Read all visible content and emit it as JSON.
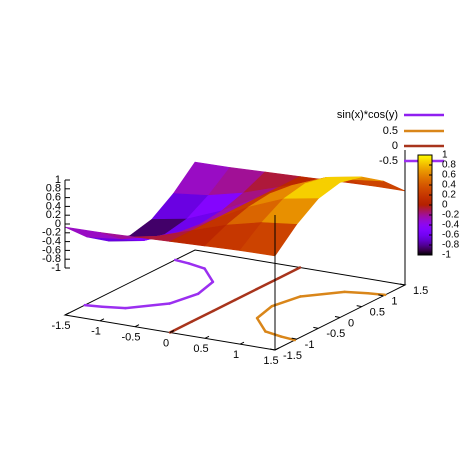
{
  "chart_data": {
    "type": "surface",
    "x": [
      -1.5,
      -1,
      -0.5,
      0,
      0.5,
      1,
      1.5
    ],
    "y": [
      -1.5,
      -1,
      -0.5,
      0,
      0.5,
      1,
      1.5
    ],
    "surface": {
      "name": "sin(x)*cos(y)",
      "color": "#8f1ff0",
      "z": [
        [
          -0.07,
          -0.06,
          -0.03,
          0,
          0.03,
          0.06,
          0.07
        ],
        [
          -0.54,
          -0.45,
          -0.26,
          0,
          0.26,
          0.45,
          0.54
        ],
        [
          -0.88,
          -0.74,
          -0.42,
          0,
          0.42,
          0.74,
          0.88
        ],
        [
          -1.0,
          -0.84,
          -0.48,
          0,
          0.48,
          0.84,
          1.0
        ],
        [
          -0.88,
          -0.74,
          -0.42,
          0,
          0.42,
          0.74,
          0.88
        ],
        [
          -0.54,
          -0.45,
          -0.26,
          0,
          0.26,
          0.45,
          0.54
        ],
        [
          -0.07,
          -0.06,
          -0.03,
          0,
          0.03,
          0.06,
          0.07
        ]
      ]
    },
    "contours": [
      {
        "level": 0.5,
        "color": "#d9861a"
      },
      {
        "level": 0,
        "color": "#a8341c"
      },
      {
        "level": -0.5,
        "color": "#9b2ff0"
      }
    ],
    "xlim": [
      -1.5,
      1.5
    ],
    "xticks": [
      -1.5,
      -1,
      -0.5,
      0,
      0.5,
      1,
      1.5
    ],
    "ylim": [
      -1.5,
      1.5
    ],
    "yticks": [
      -1.5,
      -1,
      -0.5,
      0,
      0.5,
      1,
      1.5
    ],
    "zlim": [
      -1,
      1
    ],
    "zticks": [
      -1,
      -0.8,
      -0.6,
      -0.4,
      -0.2,
      0,
      0.2,
      0.4,
      0.6,
      0.8,
      1
    ],
    "cblim": [
      -1,
      1
    ],
    "cbticks": [
      -1,
      -0.8,
      -0.6,
      -0.4,
      -0.2,
      0,
      0.2,
      0.4,
      0.6,
      0.8,
      1
    ]
  }
}
